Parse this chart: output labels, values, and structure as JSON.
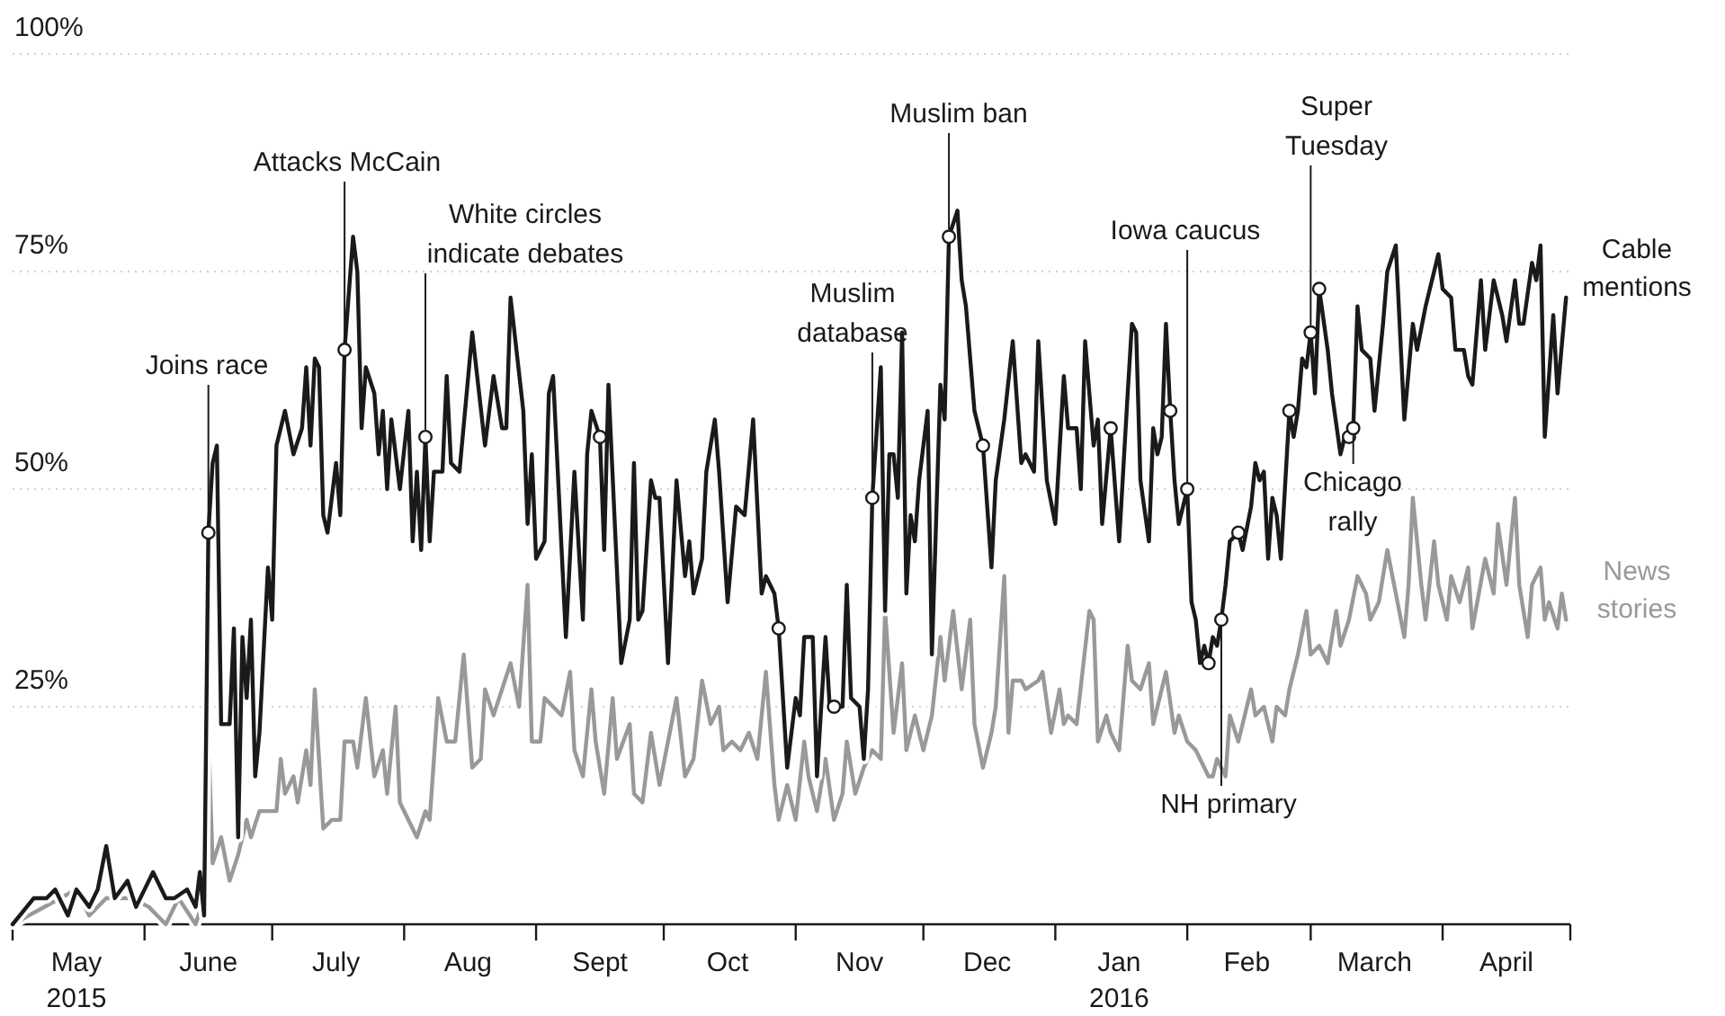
{
  "chart_data": {
    "type": "line",
    "xlim": [
      "2015-05-01",
      "2016-05-01"
    ],
    "xticks": [
      {
        "value": "2015-05-01",
        "label": null
      },
      {
        "value": "2015-05-16",
        "label": "May\n2015"
      },
      {
        "value": "2015-06-01",
        "label": null
      },
      {
        "value": "2015-06-16",
        "label": "June"
      },
      {
        "value": "2015-07-01",
        "label": null
      },
      {
        "value": "2015-07-16",
        "label": "July"
      },
      {
        "value": "2015-08-01",
        "label": null
      },
      {
        "value": "2015-08-16",
        "label": "Aug"
      },
      {
        "value": "2015-09-01",
        "label": null
      },
      {
        "value": "2015-09-16",
        "label": "Sept"
      },
      {
        "value": "2015-10-01",
        "label": null
      },
      {
        "value": "2015-10-16",
        "label": "Oct"
      },
      {
        "value": "2015-11-01",
        "label": null
      },
      {
        "value": "2015-11-16",
        "label": "Nov"
      },
      {
        "value": "2015-12-01",
        "label": null
      },
      {
        "value": "2015-12-16",
        "label": "Dec"
      },
      {
        "value": "2016-01-01",
        "label": null
      },
      {
        "value": "2016-01-16",
        "label": "Jan\n2016"
      },
      {
        "value": "2016-02-01",
        "label": null
      },
      {
        "value": "2016-02-15",
        "label": "Feb"
      },
      {
        "value": "2016-03-01",
        "label": null
      },
      {
        "value": "2016-03-16",
        "label": "March"
      },
      {
        "value": "2016-04-01",
        "label": null
      },
      {
        "value": "2016-04-16",
        "label": "April"
      },
      {
        "value": "2016-05-01",
        "label": null
      }
    ],
    "ylim": [
      0,
      100
    ],
    "yticks": [
      {
        "value": 25,
        "label": "25%"
      },
      {
        "value": 50,
        "label": "50%"
      },
      {
        "value": 75,
        "label": "75%"
      },
      {
        "value": 100,
        "label": "100%"
      }
    ],
    "grid": "y",
    "series": [
      {
        "name": "News stories",
        "color": "#999999",
        "x": [
          "2015-05-01",
          "2015-05-16",
          "2015-05-19",
          "2015-05-23",
          "2015-05-29",
          "2015-06-02",
          "2015-06-06",
          "2015-06-09",
          "2015-06-13",
          "2015-06-15",
          "2015-06-16",
          "2015-06-17",
          "2015-06-19",
          "2015-06-21",
          "2015-06-23",
          "2015-06-25",
          "2015-06-26",
          "2015-06-28",
          "2015-07-02",
          "2015-07-03",
          "2015-07-04",
          "2015-07-06",
          "2015-07-07",
          "2015-07-09",
          "2015-07-10",
          "2015-07-11",
          "2015-07-13",
          "2015-07-15",
          "2015-07-17",
          "2015-07-18",
          "2015-07-20",
          "2015-07-21",
          "2015-07-23",
          "2015-07-25",
          "2015-07-27",
          "2015-07-28",
          "2015-07-30",
          "2015-07-31",
          "2015-08-01",
          "2015-08-04",
          "2015-08-06",
          "2015-08-07",
          "2015-08-09",
          "2015-08-11",
          "2015-08-13",
          "2015-08-15",
          "2015-08-17",
          "2015-08-19",
          "2015-08-20",
          "2015-08-22",
          "2015-08-26",
          "2015-08-28",
          "2015-08-30",
          "2015-08-31",
          "2015-09-01",
          "2015-09-02",
          "2015-09-03",
          "2015-09-05",
          "2015-09-07",
          "2015-09-09",
          "2015-09-10",
          "2015-09-12",
          "2015-09-14",
          "2015-09-15",
          "2015-09-17",
          "2015-09-19",
          "2015-09-20",
          "2015-09-23",
          "2015-09-24",
          "2015-09-26",
          "2015-09-28",
          "2015-09-30",
          "2015-10-02",
          "2015-10-04",
          "2015-10-06",
          "2015-10-08",
          "2015-10-10",
          "2015-10-12",
          "2015-10-14",
          "2015-10-15",
          "2015-10-17",
          "2015-10-19",
          "2015-10-21",
          "2015-10-23",
          "2015-10-25",
          "2015-10-27",
          "2015-10-28",
          "2015-10-30",
          "2015-11-01",
          "2015-11-03",
          "2015-11-04",
          "2015-11-06",
          "2015-11-08",
          "2015-11-10",
          "2015-11-12",
          "2015-11-13",
          "2015-11-15",
          "2015-11-17",
          "2015-11-19",
          "2015-11-21",
          "2015-11-22",
          "2015-11-24",
          "2015-11-26",
          "2015-11-27",
          "2015-11-29",
          "2015-12-01",
          "2015-12-03",
          "2015-12-05",
          "2015-12-06",
          "2015-12-08",
          "2015-12-10",
          "2015-12-12",
          "2015-12-13",
          "2015-12-15",
          "2015-12-17",
          "2015-12-18",
          "2015-12-20",
          "2015-12-21",
          "2015-12-22",
          "2015-12-24",
          "2015-12-25",
          "2015-12-28",
          "2015-12-29",
          "2015-12-31",
          "2016-01-02",
          "2016-01-03",
          "2016-01-04",
          "2016-01-06",
          "2016-01-09",
          "2016-01-10",
          "2016-01-11",
          "2016-01-13",
          "2016-01-14",
          "2016-01-16",
          "2016-01-18",
          "2016-01-19",
          "2016-01-21",
          "2016-01-23",
          "2016-01-24",
          "2016-01-25",
          "2016-01-27",
          "2016-01-29",
          "2016-01-30",
          "2016-02-01",
          "2016-02-03",
          "2016-02-04",
          "2016-02-06",
          "2016-02-07",
          "2016-02-08",
          "2016-02-10",
          "2016-02-11",
          "2016-02-13",
          "2016-02-15",
          "2016-02-16",
          "2016-02-17",
          "2016-02-19",
          "2016-02-21",
          "2016-02-22",
          "2016-02-24",
          "2016-02-25",
          "2016-02-27",
          "2016-02-29",
          "2016-03-01",
          "2016-03-03",
          "2016-03-05",
          "2016-03-07",
          "2016-03-08",
          "2016-03-10",
          "2016-03-12",
          "2016-03-14",
          "2016-03-15",
          "2016-03-17",
          "2016-03-19",
          "2016-03-21",
          "2016-03-23",
          "2016-03-24",
          "2016-03-25",
          "2016-03-27",
          "2016-03-28",
          "2016-03-30",
          "2016-03-31",
          "2016-04-02",
          "2016-04-03",
          "2016-04-05",
          "2016-04-07",
          "2016-04-08",
          "2016-04-11",
          "2016-04-13",
          "2016-04-14",
          "2016-04-16",
          "2016-04-18",
          "2016-04-19",
          "2016-04-21",
          "2016-04-22",
          "2016-04-24",
          "2016-04-25",
          "2016-04-26",
          "2016-04-28",
          "2016-04-29",
          "2016-04-30"
        ],
        "values": [
          0,
          4,
          1,
          3,
          3,
          2,
          0,
          3,
          0,
          3,
          22,
          7,
          10,
          5,
          8,
          12,
          10,
          13,
          13,
          19,
          15,
          17,
          14,
          20,
          16,
          27,
          11,
          12,
          12,
          21,
          21,
          18,
          26,
          17,
          20,
          15,
          25,
          14,
          13,
          10,
          13,
          12,
          26,
          21,
          21,
          31,
          18,
          19,
          27,
          24,
          30,
          25,
          39,
          21,
          21,
          21,
          26,
          25,
          24,
          29,
          20,
          17,
          27,
          21,
          15,
          26,
          19,
          23,
          15,
          14,
          22,
          16,
          21,
          26,
          17,
          19,
          28,
          23,
          25,
          20,
          21,
          20,
          22,
          19,
          29,
          16,
          12,
          16,
          12,
          21,
          17,
          13,
          19,
          12,
          15,
          21,
          15,
          18,
          20,
          19,
          36,
          22,
          30,
          20,
          24,
          20,
          24,
          33,
          28,
          36,
          27,
          35,
          23,
          18,
          22,
          25,
          40,
          22,
          28,
          28,
          27,
          28,
          29,
          22,
          27,
          23,
          24,
          23,
          36,
          35,
          21,
          24,
          22,
          20,
          32,
          28,
          27,
          30,
          23,
          25,
          29,
          22,
          24,
          21,
          20,
          19,
          17,
          17,
          19,
          17,
          24,
          21,
          25,
          27,
          24,
          25,
          21,
          25,
          24,
          27,
          31,
          36,
          31,
          32,
          30,
          36,
          32,
          35,
          40,
          38,
          35,
          37,
          43,
          38,
          33,
          39,
          49,
          39,
          35,
          44,
          39,
          35,
          40,
          37,
          41,
          34,
          42,
          38,
          46,
          39,
          49,
          39,
          33,
          39,
          41,
          35,
          37,
          34,
          38,
          35
        ]
      },
      {
        "name": "Cable mentions",
        "color": "#1a1a1a",
        "x": [
          "2015-05-01",
          "2015-05-06",
          "2015-05-09",
          "2015-05-11",
          "2015-05-14",
          "2015-05-16",
          "2015-05-19",
          "2015-05-21",
          "2015-05-23",
          "2015-05-25",
          "2015-05-28",
          "2015-05-30",
          "2015-06-03",
          "2015-06-06",
          "2015-06-08",
          "2015-06-11",
          "2015-06-13",
          "2015-06-14",
          "2015-06-15",
          "2015-06-16",
          "2015-06-17",
          "2015-06-18",
          "2015-06-19",
          "2015-06-21",
          "2015-06-22",
          "2015-06-23",
          "2015-06-24",
          "2015-06-25",
          "2015-06-26",
          "2015-06-27",
          "2015-06-28",
          "2015-06-30",
          "2015-07-01",
          "2015-07-02",
          "2015-07-04",
          "2015-07-06",
          "2015-07-08",
          "2015-07-09",
          "2015-07-10",
          "2015-07-11",
          "2015-07-12",
          "2015-07-13",
          "2015-07-14",
          "2015-07-16",
          "2015-07-17",
          "2015-07-18",
          "2015-07-20",
          "2015-07-21",
          "2015-07-22",
          "2015-07-23",
          "2015-07-25",
          "2015-07-26",
          "2015-07-27",
          "2015-07-28",
          "2015-07-29",
          "2015-07-31",
          "2015-08-02",
          "2015-08-03",
          "2015-08-04",
          "2015-08-05",
          "2015-08-06",
          "2015-08-07",
          "2015-08-08",
          "2015-08-10",
          "2015-08-11",
          "2015-08-12",
          "2015-08-14",
          "2015-08-17",
          "2015-08-20",
          "2015-08-22",
          "2015-08-24",
          "2015-08-25",
          "2015-08-26",
          "2015-08-29",
          "2015-08-30",
          "2015-08-31",
          "2015-09-01",
          "2015-09-03",
          "2015-09-04",
          "2015-09-05",
          "2015-09-08",
          "2015-09-10",
          "2015-09-12",
          "2015-09-13",
          "2015-09-14",
          "2015-09-16",
          "2015-09-17",
          "2015-09-18",
          "2015-09-21",
          "2015-09-23",
          "2015-09-24",
          "2015-09-25",
          "2015-09-26",
          "2015-09-28",
          "2015-09-29",
          "2015-09-30",
          "2015-10-02",
          "2015-10-04",
          "2015-10-06",
          "2015-10-07",
          "2015-10-08",
          "2015-10-10",
          "2015-10-11",
          "2015-10-13",
          "2015-10-14",
          "2015-10-16",
          "2015-10-18",
          "2015-10-20",
          "2015-10-22",
          "2015-10-24",
          "2015-10-25",
          "2015-10-27",
          "2015-10-28",
          "2015-10-30",
          "2015-11-01",
          "2015-11-02",
          "2015-11-03",
          "2015-11-05",
          "2015-11-06",
          "2015-11-08",
          "2015-11-09",
          "2015-11-10",
          "2015-11-12",
          "2015-11-13",
          "2015-11-14",
          "2015-11-16",
          "2015-11-17",
          "2015-11-18",
          "2015-11-19",
          "2015-11-21",
          "2015-11-22",
          "2015-11-23",
          "2015-11-24",
          "2015-11-25",
          "2015-11-26",
          "2015-11-27",
          "2015-11-28",
          "2015-11-29",
          "2015-11-30",
          "2015-12-02",
          "2015-12-03",
          "2015-12-05",
          "2015-12-06",
          "2015-12-07",
          "2015-12-09",
          "2015-12-10",
          "2015-12-11",
          "2015-12-13",
          "2015-12-15",
          "2015-12-17",
          "2015-12-18",
          "2015-12-20",
          "2015-12-22",
          "2015-12-24",
          "2015-12-25",
          "2015-12-27",
          "2015-12-28",
          "2015-12-30",
          "2016-01-01",
          "2016-01-03",
          "2016-01-04",
          "2016-01-06",
          "2016-01-07",
          "2016-01-08",
          "2016-01-10",
          "2016-01-11",
          "2016-01-12",
          "2016-01-14",
          "2016-01-16",
          "2016-01-18",
          "2016-01-19",
          "2016-01-20",
          "2016-01-21",
          "2016-01-23",
          "2016-01-24",
          "2016-01-25",
          "2016-01-26",
          "2016-01-27",
          "2016-01-28",
          "2016-01-29",
          "2016-01-30",
          "2016-02-01",
          "2016-02-02",
          "2016-02-03",
          "2016-02-04",
          "2016-02-05",
          "2016-02-06",
          "2016-02-07",
          "2016-02-08",
          "2016-02-09",
          "2016-02-10",
          "2016-02-11",
          "2016-02-13",
          "2016-02-14",
          "2016-02-16",
          "2016-02-17",
          "2016-02-18",
          "2016-02-19",
          "2016-02-20",
          "2016-02-21",
          "2016-02-22",
          "2016-02-23",
          "2016-02-25",
          "2016-02-26",
          "2016-02-27",
          "2016-02-28",
          "2016-02-29",
          "2016-03-01",
          "2016-03-02",
          "2016-03-03",
          "2016-03-05",
          "2016-03-06",
          "2016-03-08",
          "2016-03-09",
          "2016-03-10",
          "2016-03-11",
          "2016-03-12",
          "2016-03-13",
          "2016-03-15",
          "2016-03-16",
          "2016-03-18",
          "2016-03-19",
          "2016-03-21",
          "2016-03-23",
          "2016-03-25",
          "2016-03-26",
          "2016-03-28",
          "2016-03-31",
          "2016-04-01",
          "2016-04-03",
          "2016-04-04",
          "2016-04-06",
          "2016-04-07",
          "2016-04-08",
          "2016-04-10",
          "2016-04-11",
          "2016-04-13",
          "2016-04-15",
          "2016-04-16",
          "2016-04-18",
          "2016-04-19",
          "2016-04-20",
          "2016-04-22",
          "2016-04-23",
          "2016-04-24",
          "2016-04-25",
          "2016-04-27",
          "2016-04-28",
          "2016-04-30"
        ],
        "values": [
          0,
          3,
          3,
          4,
          1,
          4,
          2,
          4,
          9,
          3,
          5,
          2,
          6,
          3,
          3,
          4,
          2,
          6,
          1,
          45,
          53,
          55,
          23,
          23,
          34,
          10,
          33,
          26,
          35,
          17,
          22,
          41,
          35,
          55,
          59,
          54,
          57,
          64,
          55,
          65,
          64,
          47,
          45,
          53,
          47,
          66,
          79,
          75,
          57,
          64,
          61,
          54,
          59,
          50,
          58,
          50,
          59,
          44,
          52,
          43,
          56,
          44,
          52,
          52,
          63,
          53,
          52,
          68,
          55,
          63,
          57,
          57,
          72,
          59,
          46,
          54,
          42,
          44,
          61,
          63,
          33,
          52,
          35,
          54,
          59,
          56,
          43,
          62,
          30,
          35,
          53,
          35,
          36,
          51,
          49,
          49,
          30,
          51,
          40,
          44,
          38,
          42,
          52,
          58,
          52,
          37,
          48,
          47,
          58,
          38,
          40,
          38,
          34,
          18,
          26,
          24,
          33,
          33,
          17,
          33,
          25,
          25,
          25,
          39,
          26,
          25,
          19,
          27,
          49,
          64,
          36,
          54,
          54,
          49,
          68,
          38,
          47,
          44,
          51,
          59,
          31,
          62,
          58,
          79,
          82,
          74,
          71,
          59,
          55,
          41,
          51,
          58,
          67,
          53,
          54,
          52,
          67,
          51,
          46,
          63,
          57,
          57,
          50,
          67,
          55,
          58,
          46,
          57,
          44,
          61,
          69,
          68,
          51,
          44,
          57,
          54,
          56,
          69,
          59,
          51,
          46,
          50,
          37,
          35,
          30,
          32,
          30,
          33,
          32,
          35,
          39,
          44,
          45,
          43,
          48,
          53,
          51,
          52,
          42,
          49,
          47,
          42,
          59,
          56,
          59,
          65,
          64,
          68,
          61,
          73,
          66,
          61,
          54,
          56,
          56,
          57,
          71,
          66,
          65,
          59,
          69,
          75,
          78,
          58,
          69,
          66,
          71,
          77,
          73,
          72,
          66,
          66,
          63,
          62,
          74,
          66,
          74,
          70,
          67,
          74,
          69,
          69,
          76,
          74,
          78,
          56,
          70,
          61,
          72
        ]
      },
      {
        "type": "scatter",
        "marker": "circle",
        "color": "#ffffff",
        "x": [
          "2015-06-16",
          "2015-07-18",
          "2015-08-06",
          "2015-09-16",
          "2015-10-28",
          "2015-11-10",
          "2015-11-19",
          "2015-12-07",
          "2015-12-15",
          "2016-01-14",
          "2016-01-28",
          "2016-02-01",
          "2016-02-06",
          "2016-02-09",
          "2016-02-13",
          "2016-02-25",
          "2016-03-01",
          "2016-03-03",
          "2016-03-10",
          "2016-03-11"
        ],
        "values": [
          45,
          66,
          56,
          56,
          34,
          25,
          49,
          79,
          55,
          57,
          59,
          50,
          30,
          35,
          45,
          59,
          68,
          73,
          56,
          57
        ]
      }
    ],
    "annotations": [
      {
        "text": "Joins race",
        "x": "2015-06-16",
        "y": 45
      },
      {
        "text": "Attacks McCain",
        "x": "2015-07-18",
        "y": 66
      },
      {
        "text": "White circles\nindicate debates",
        "x": "2015-08-06",
        "y": 56
      },
      {
        "text": "Muslim\ndatabase",
        "x": "2015-11-19",
        "y": 49
      },
      {
        "text": "Muslim ban",
        "x": "2015-12-07",
        "y": 79
      },
      {
        "text": "Iowa caucus",
        "x": "2016-02-01",
        "y": 50
      },
      {
        "text": "Super\nTuesday",
        "x": "2016-03-01",
        "y": 68
      },
      {
        "text": "Chicago\nrally",
        "x": "2016-03-11",
        "y": 57
      },
      {
        "text": "NH primary",
        "x": "2016-02-09",
        "y": 35
      }
    ]
  }
}
